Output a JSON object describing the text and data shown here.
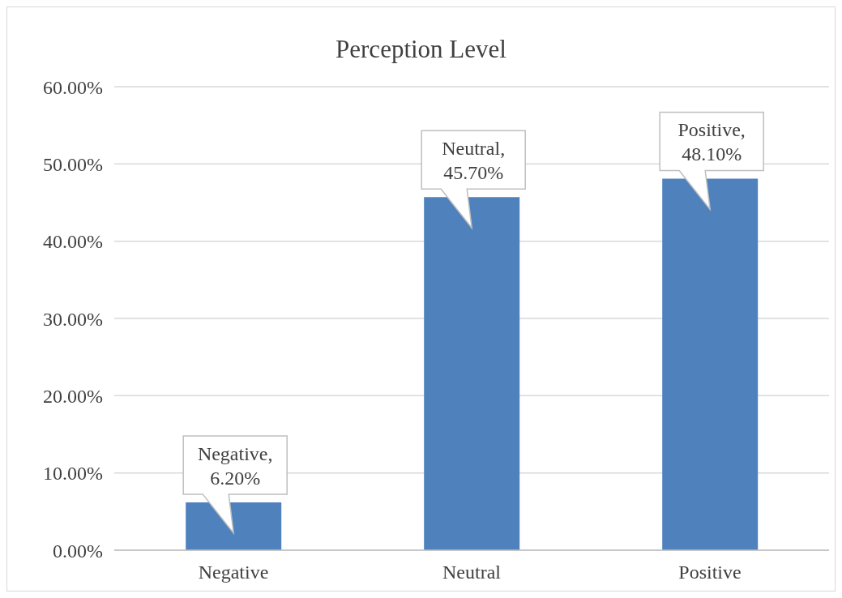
{
  "chart_data": {
    "type": "bar",
    "title": "Perception Level",
    "categories": [
      "Negative",
      "Neutral",
      "Positive"
    ],
    "values": [
      6.2,
      45.7,
      48.1
    ],
    "color": "#4f81bd",
    "value_labels": [
      "Negative, 6.20%",
      "Neutral, 45.70%",
      "Positive, 48.10%"
    ],
    "ylim": [
      0,
      60
    ],
    "yticks": [
      {
        "value": 0,
        "label": "0.00%"
      },
      {
        "value": 10,
        "label": "10.00%"
      },
      {
        "value": 20,
        "label": "20.00%"
      },
      {
        "value": 30,
        "label": "30.00%"
      },
      {
        "value": 40,
        "label": "40.00%"
      },
      {
        "value": 50,
        "label": "50.00%"
      },
      {
        "value": 60,
        "label": "60.00%"
      }
    ],
    "grid": "y"
  }
}
